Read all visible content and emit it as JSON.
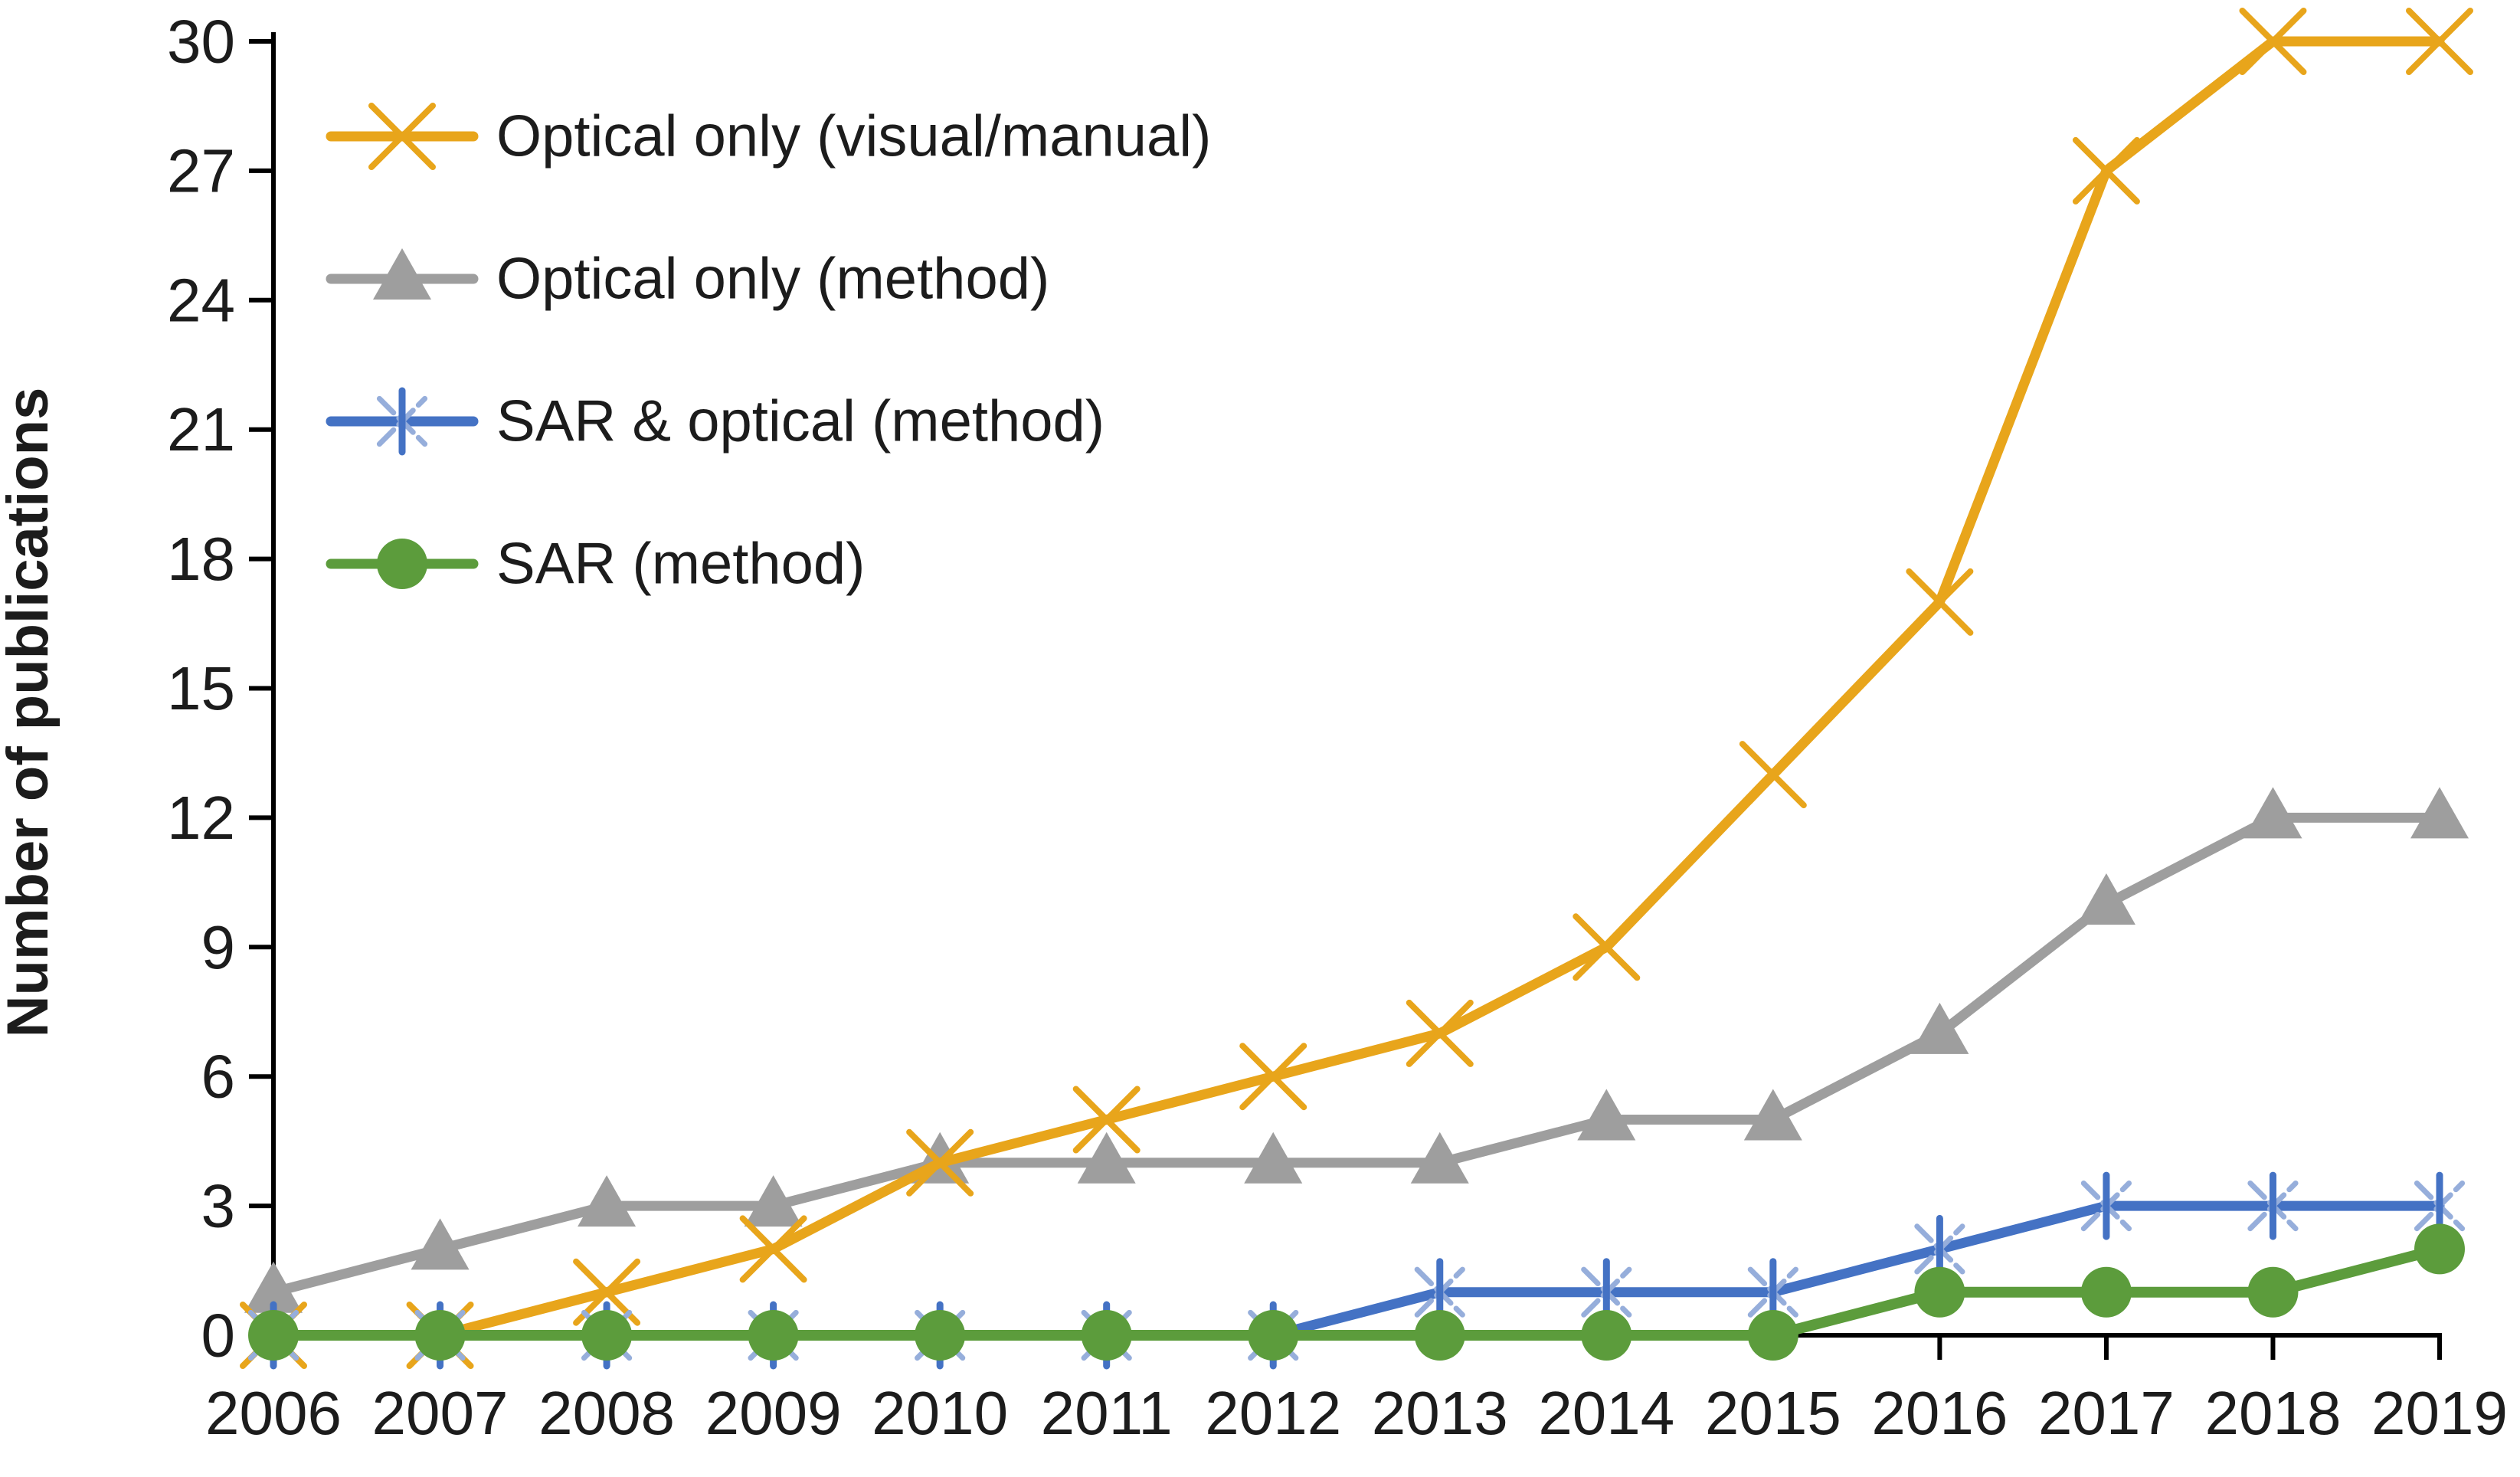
{
  "chart_data": {
    "type": "line",
    "title": "",
    "xlabel": "",
    "ylabel": "Number of publications",
    "x": [
      2006,
      2007,
      2008,
      2009,
      2010,
      2011,
      2012,
      2013,
      2014,
      2015,
      2016,
      2017,
      2018,
      2019
    ],
    "ylim": [
      0,
      30
    ],
    "yticks": [
      0,
      3,
      6,
      9,
      12,
      15,
      18,
      21,
      24,
      27,
      30
    ],
    "grid": false,
    "legend_position": "inside-top-left",
    "axis_color": "#000000",
    "text_color": "#1c1c1c",
    "series": [
      {
        "name": "Optical only (visual/manual)",
        "color": "#E8A51B",
        "marker": "x",
        "values": [
          0,
          0,
          1,
          2,
          4,
          5,
          6,
          7,
          9,
          13,
          17,
          27,
          30,
          30
        ]
      },
      {
        "name": "Optical only (method)",
        "color": "#9E9E9E",
        "marker": "triangle",
        "values": [
          1,
          2,
          3,
          3,
          4,
          4,
          4,
          4,
          5,
          5,
          7,
          10,
          12,
          12
        ]
      },
      {
        "name": "SAR & optical (method)",
        "color": "#4472C4",
        "marker": "asterisk",
        "marker_spoke_color": "#96AEDB",
        "values": [
          0,
          0,
          0,
          0,
          0,
          0,
          0,
          1,
          1,
          1,
          2,
          3,
          3,
          3
        ]
      },
      {
        "name": "SAR (method)",
        "color": "#5C9C3C",
        "marker": "circle",
        "values": [
          0,
          0,
          0,
          0,
          0,
          0,
          0,
          0,
          0,
          0,
          1,
          1,
          1,
          2
        ]
      }
    ]
  }
}
